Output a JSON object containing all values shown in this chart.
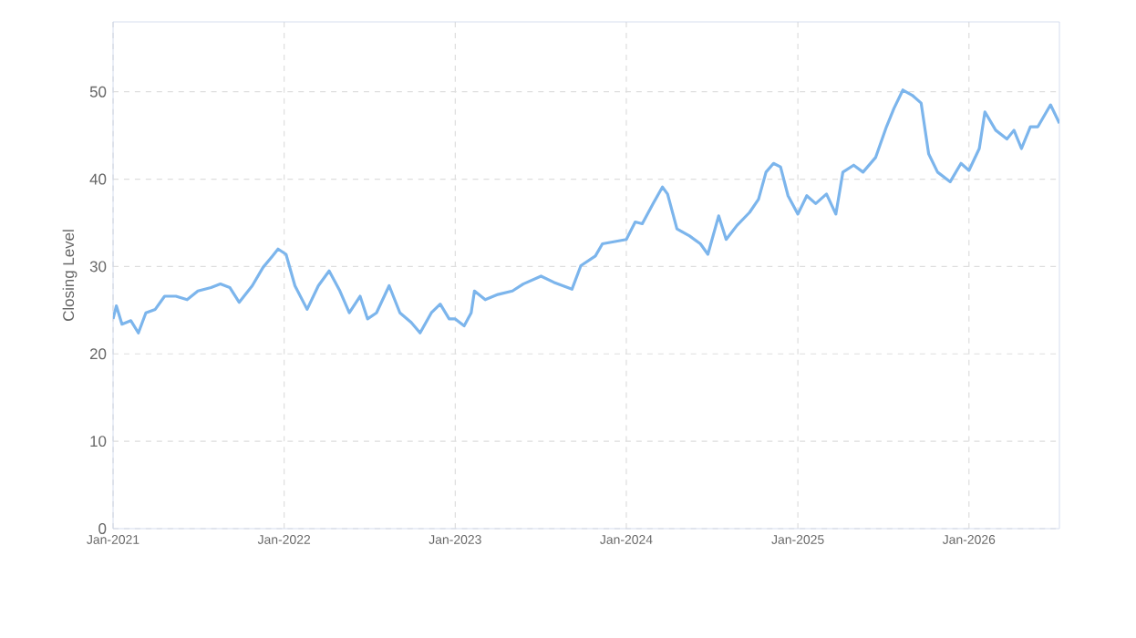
{
  "chart_data": {
    "type": "line",
    "ylabel": "Closing Level",
    "color": "#7cb5ec",
    "grid": true,
    "marker": "none",
    "line_style": "solid",
    "xlim": [
      "2021-01-01",
      "2026-07-13"
    ],
    "ylim": [
      0,
      58
    ],
    "xticks": [
      {
        "value": "2021-01-01",
        "label": "Jan-2021"
      },
      {
        "value": "2022-01-01",
        "label": "Jan-2022"
      },
      {
        "value": "2023-01-01",
        "label": "Jan-2023"
      },
      {
        "value": "2024-01-01",
        "label": "Jan-2024"
      },
      {
        "value": "2025-01-01",
        "label": "Jan-2025"
      },
      {
        "value": "2026-01-01",
        "label": "Jan-2026"
      }
    ],
    "yticks": [
      0,
      10,
      20,
      30,
      40,
      50
    ],
    "x": [
      "2021-01-01",
      "2021-01-08",
      "2021-01-20",
      "2021-02-08",
      "2021-02-24",
      "2021-03-12",
      "2021-04-01",
      "2021-04-21",
      "2021-05-15",
      "2021-06-08",
      "2021-07-01",
      "2021-07-29",
      "2021-08-18",
      "2021-09-07",
      "2021-09-27",
      "2021-10-25",
      "2021-11-17",
      "2021-12-07",
      "2021-12-19",
      "2022-01-05",
      "2022-01-24",
      "2022-02-19",
      "2022-03-15",
      "2022-04-07",
      "2022-04-30",
      "2022-05-20",
      "2022-06-12",
      "2022-06-28",
      "2022-07-17",
      "2022-08-13",
      "2022-09-05",
      "2022-09-29",
      "2022-10-18",
      "2022-11-11",
      "2022-11-30",
      "2022-12-19",
      "2023-01-01",
      "2023-01-20",
      "2023-02-04",
      "2023-02-11",
      "2023-03-06",
      "2023-04-02",
      "2023-05-03",
      "2023-05-26",
      "2023-07-03",
      "2023-07-30",
      "2023-09-07",
      "2023-09-26",
      "2023-10-27",
      "2023-11-11",
      "2024-01-01",
      "2024-01-20",
      "2024-02-04",
      "2024-02-27",
      "2024-03-18",
      "2024-03-29",
      "2024-04-18",
      "2024-05-15",
      "2024-06-07",
      "2024-06-23",
      "2024-07-16",
      "2024-08-01",
      "2024-08-24",
      "2024-09-20",
      "2024-10-09",
      "2024-10-25",
      "2024-11-10",
      "2024-11-25",
      "2024-12-11",
      "2025-01-01",
      "2025-01-20",
      "2025-02-08",
      "2025-03-03",
      "2025-03-23",
      "2025-04-07",
      "2025-04-30",
      "2025-05-20",
      "2025-06-16",
      "2025-07-09",
      "2025-07-25",
      "2025-08-13",
      "2025-09-02",
      "2025-09-21",
      "2025-10-07",
      "2025-10-26",
      "2025-11-22",
      "2025-12-15",
      "2026-01-01",
      "2026-01-23",
      "2026-02-04",
      "2026-02-27",
      "2026-03-23",
      "2026-04-07",
      "2026-04-23",
      "2026-05-12",
      "2026-05-28",
      "2026-06-24",
      "2026-07-13"
    ],
    "values": [
      24.0,
      25.5,
      23.4,
      23.8,
      22.4,
      24.7,
      25.1,
      26.6,
      26.6,
      26.2,
      27.2,
      27.6,
      28.0,
      27.6,
      25.9,
      27.8,
      29.9,
      31.2,
      32.0,
      31.4,
      27.8,
      25.1,
      27.8,
      29.5,
      27.2,
      24.7,
      26.6,
      24.0,
      24.7,
      27.8,
      24.7,
      23.6,
      22.4,
      24.7,
      25.7,
      24.0,
      24.0,
      23.2,
      24.7,
      27.2,
      26.2,
      26.8,
      27.2,
      28.0,
      28.9,
      28.2,
      27.4,
      30.1,
      31.2,
      32.6,
      33.1,
      35.1,
      34.9,
      37.2,
      39.1,
      38.3,
      34.3,
      33.5,
      32.6,
      31.4,
      35.8,
      33.1,
      34.7,
      36.2,
      37.7,
      40.8,
      41.8,
      41.4,
      38.1,
      36.0,
      38.1,
      37.2,
      38.3,
      36.0,
      40.8,
      41.6,
      40.8,
      42.5,
      46.0,
      48.1,
      50.2,
      49.6,
      48.7,
      42.9,
      40.8,
      39.7,
      41.8,
      41.0,
      43.5,
      47.7,
      45.6,
      44.6,
      45.6,
      43.5,
      46.0,
      46.0,
      48.5,
      46.4
    ]
  }
}
